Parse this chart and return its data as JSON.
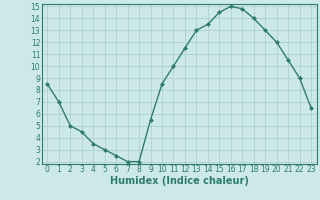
{
  "xlabel": "Humidex (Indice chaleur)",
  "ylabel": "",
  "x": [
    0,
    1,
    2,
    3,
    4,
    5,
    6,
    7,
    8,
    9,
    10,
    11,
    12,
    13,
    14,
    15,
    16,
    17,
    18,
    19,
    20,
    21,
    22,
    23
  ],
  "y": [
    8.5,
    7.0,
    5.0,
    4.5,
    3.5,
    3.0,
    2.5,
    2.0,
    2.0,
    5.5,
    8.5,
    10.0,
    11.5,
    13.0,
    13.5,
    14.5,
    15.0,
    14.8,
    14.0,
    13.0,
    12.0,
    10.5,
    9.0,
    6.5
  ],
  "line_color": "#2e7d6b",
  "marker_color": "#2e7d6b",
  "bg_color": "#cce8e8",
  "grid_color": "#aacccc",
  "axis_label_color": "#2e7d6b",
  "tick_label_color": "#2e7d6b",
  "ylim": [
    2,
    15
  ],
  "xlim": [
    -0.5,
    23.5
  ],
  "xticks": [
    0,
    1,
    2,
    3,
    4,
    5,
    6,
    7,
    8,
    9,
    10,
    11,
    12,
    13,
    14,
    15,
    16,
    17,
    18,
    19,
    20,
    21,
    22,
    23
  ],
  "yticks": [
    2,
    3,
    4,
    5,
    6,
    7,
    8,
    9,
    10,
    11,
    12,
    13,
    14,
    15
  ],
  "xlabel_fontsize": 7,
  "tick_fontsize": 5.5
}
